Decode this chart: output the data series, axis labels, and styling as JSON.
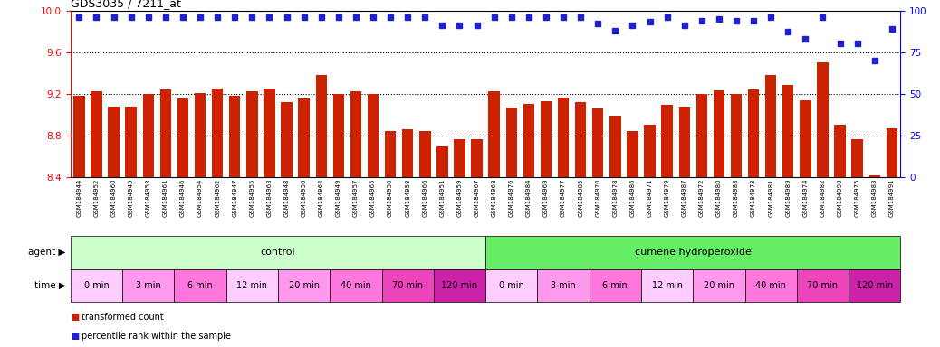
{
  "title": "GDS3035 / 7211_at",
  "ylim": [
    8.4,
    10.0
  ],
  "yticks_left": [
    8.4,
    8.8,
    9.2,
    9.6,
    10.0
  ],
  "yticks_right": [
    0,
    25,
    50,
    75,
    100
  ],
  "bar_color": "#cc2200",
  "dot_color": "#2222cc",
  "bg_color": "#ffffff",
  "grid_line_color": "#333333",
  "categories": [
    "GSM184944",
    "GSM184952",
    "GSM184960",
    "GSM184945",
    "GSM184953",
    "GSM184961",
    "GSM184946",
    "GSM184954",
    "GSM184962",
    "GSM184947",
    "GSM184955",
    "GSM184963",
    "GSM184948",
    "GSM184956",
    "GSM184964",
    "GSM184949",
    "GSM184957",
    "GSM184965",
    "GSM184950",
    "GSM184958",
    "GSM184966",
    "GSM184951",
    "GSM184959",
    "GSM184967",
    "GSM184968",
    "GSM184976",
    "GSM184984",
    "GSM184969",
    "GSM184977",
    "GSM184985",
    "GSM184970",
    "GSM184978",
    "GSM184986",
    "GSM184971",
    "GSM184979",
    "GSM184987",
    "GSM184972",
    "GSM184980",
    "GSM184988",
    "GSM184973",
    "GSM184981",
    "GSM184989",
    "GSM184974",
    "GSM184982",
    "GSM184990",
    "GSM184975",
    "GSM184983",
    "GSM184991"
  ],
  "bar_values": [
    9.18,
    9.22,
    9.08,
    9.08,
    9.2,
    9.24,
    9.15,
    9.21,
    9.25,
    9.18,
    9.22,
    9.25,
    9.12,
    9.15,
    9.38,
    9.2,
    9.22,
    9.2,
    8.84,
    8.86,
    8.84,
    8.69,
    8.76,
    8.76,
    9.22,
    9.07,
    9.1,
    9.13,
    9.16,
    9.12,
    9.06,
    8.99,
    8.84,
    8.9,
    9.09,
    9.08,
    9.2,
    9.23,
    9.2,
    9.24,
    9.38,
    9.28,
    9.14,
    9.5,
    8.9,
    8.76,
    8.42,
    8.87
  ],
  "dot_values_pct": [
    96,
    96,
    96,
    96,
    96,
    96,
    96,
    96,
    96,
    96,
    96,
    96,
    96,
    96,
    96,
    96,
    96,
    96,
    96,
    96,
    96,
    91,
    91,
    91,
    96,
    96,
    96,
    96,
    96,
    96,
    92,
    88,
    91,
    93,
    96,
    91,
    94,
    95,
    94,
    94,
    96,
    87,
    83,
    96,
    80,
    80,
    70,
    89
  ],
  "agent_groups": [
    {
      "label": "control",
      "start": 0,
      "end": 24,
      "color": "#ccffcc"
    },
    {
      "label": "cumene hydroperoxide",
      "start": 24,
      "end": 48,
      "color": "#66ee66"
    }
  ],
  "time_groups": [
    {
      "label": "0 min",
      "start": 0,
      "end": 3,
      "color": "#ffccff"
    },
    {
      "label": "3 min",
      "start": 3,
      "end": 6,
      "color": "#ff99ee"
    },
    {
      "label": "6 min",
      "start": 6,
      "end": 9,
      "color": "#ff77dd"
    },
    {
      "label": "12 min",
      "start": 9,
      "end": 12,
      "color": "#ffccff"
    },
    {
      "label": "20 min",
      "start": 12,
      "end": 15,
      "color": "#ff99ee"
    },
    {
      "label": "40 min",
      "start": 15,
      "end": 18,
      "color": "#ff77dd"
    },
    {
      "label": "70 min",
      "start": 18,
      "end": 21,
      "color": "#ee44bb"
    },
    {
      "label": "120 min",
      "start": 21,
      "end": 24,
      "color": "#cc22aa"
    },
    {
      "label": "0 min",
      "start": 24,
      "end": 27,
      "color": "#ffccff"
    },
    {
      "label": "3 min",
      "start": 27,
      "end": 30,
      "color": "#ff99ee"
    },
    {
      "label": "6 min",
      "start": 30,
      "end": 33,
      "color": "#ff77dd"
    },
    {
      "label": "12 min",
      "start": 33,
      "end": 36,
      "color": "#ffccff"
    },
    {
      "label": "20 min",
      "start": 36,
      "end": 39,
      "color": "#ff99ee"
    },
    {
      "label": "40 min",
      "start": 39,
      "end": 42,
      "color": "#ff77dd"
    },
    {
      "label": "70 min",
      "start": 42,
      "end": 45,
      "color": "#ee44bb"
    },
    {
      "label": "120 min",
      "start": 45,
      "end": 48,
      "color": "#cc22aa"
    }
  ],
  "legend_bar_label": "transformed count",
  "legend_dot_label": "percentile rank within the sample",
  "row_label_agent": "agent",
  "row_label_time": "time"
}
